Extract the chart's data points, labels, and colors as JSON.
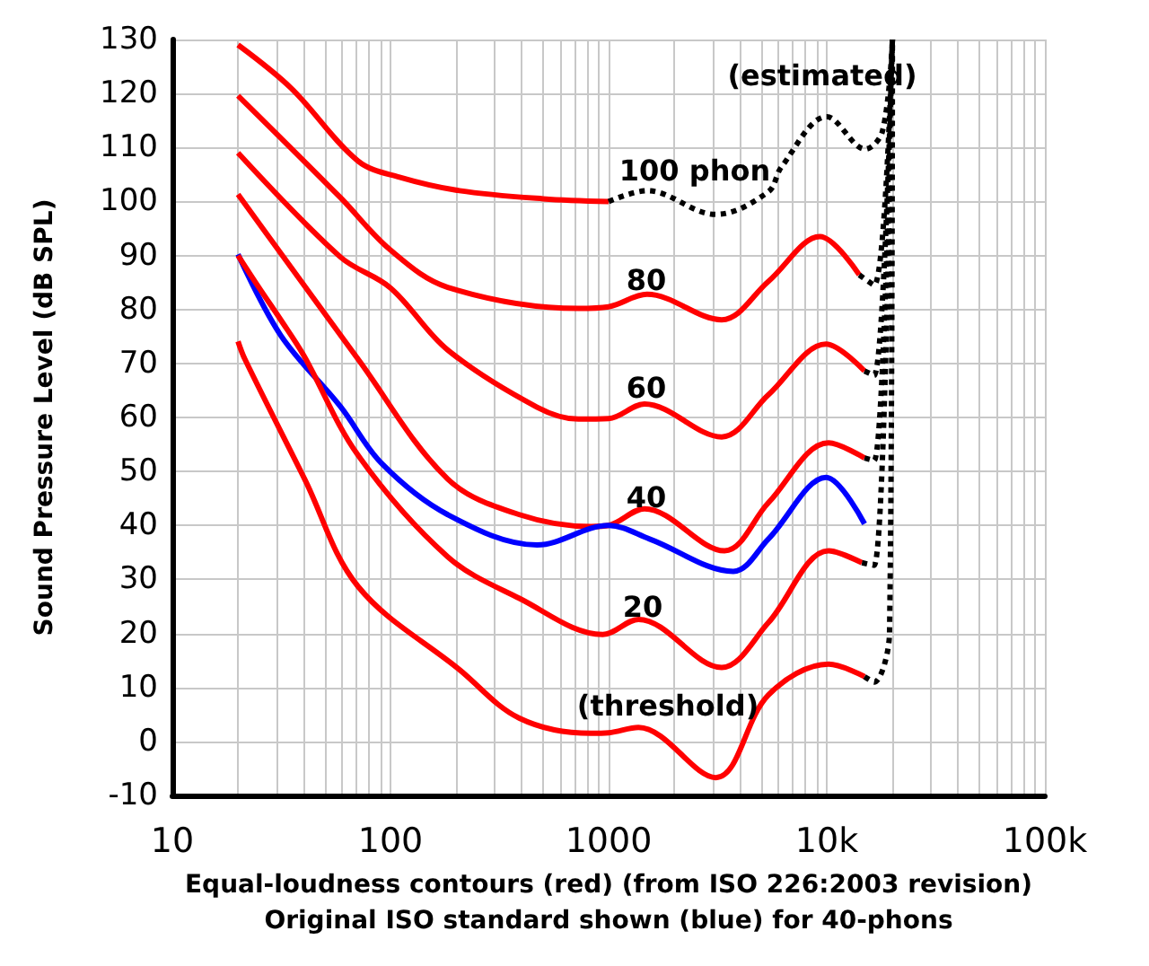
{
  "chart_data": {
    "type": "line",
    "xlabel": "Equal-loudness contours (red) (from ISO 226:2003 revision)\nOriginal ISO standard shown (blue) for 40-phons",
    "ylabel": "Sound Pressure Level (dB SPL)",
    "log": "x",
    "grid": true,
    "marker": "none",
    "xlim": [
      10,
      100000
    ],
    "xticks": [
      10,
      100,
      1000,
      {
        "value": 10000,
        "label": "10k"
      },
      {
        "value": 100000,
        "label": "100k"
      }
    ],
    "ylim": [
      -10,
      130
    ],
    "yticks": [
      -10,
      0,
      10,
      20,
      30,
      40,
      50,
      60,
      70,
      80,
      90,
      100,
      110,
      120,
      130
    ],
    "series": [
      {
        "color": "#ff0000",
        "line_style": "solid",
        "x": [
          20,
          35,
          71,
          110,
          207,
          500,
          1000
        ],
        "values": [
          129,
          121,
          107.5,
          104.5,
          102,
          100.5,
          100
        ]
      },
      {
        "color": "#000000",
        "line_style": "dotted",
        "x": [
          1000,
          1500,
          3100,
          5400,
          6200,
          10000,
          15000,
          18000,
          20000
        ],
        "values": [
          100,
          102,
          97.6,
          101.8,
          106.4,
          115.7,
          109.7,
          113,
          130
        ]
      },
      {
        "color": "#ff0000",
        "line_style": "solid",
        "x": [
          20,
          59,
          100,
          183,
          726,
          1000,
          1500,
          3300,
          5400,
          9300,
          14100
        ],
        "values": [
          119.6,
          100.7,
          91,
          84.1,
          80.2,
          80.5,
          82.8,
          78.1,
          85.2,
          93.5,
          86.4
        ]
      },
      {
        "color": "#000000",
        "line_style": "dotted",
        "x": [
          14100,
          16500,
          20000
        ],
        "values": [
          86.4,
          84.5,
          130
        ]
      },
      {
        "color": "#ff0000",
        "line_style": "solid",
        "x": [
          20,
          59,
          100,
          183,
          470,
          726,
          1000,
          1460,
          3300,
          5400,
          9930,
          14900
        ],
        "values": [
          109,
          89.7,
          84,
          72.5,
          61.9,
          59.7,
          59.8,
          62.5,
          56.4,
          64.2,
          73.6,
          68.6
        ]
      },
      {
        "color": "#000000",
        "line_style": "dotted",
        "x": [
          14900,
          16500,
          20000
        ],
        "values": [
          68.6,
          67.8,
          130
        ]
      },
      {
        "color": "#ff0000",
        "line_style": "solid",
        "x": [
          20,
          71,
          183,
          390,
          830,
          1000,
          1460,
          3400,
          5400,
          10200,
          14900
        ],
        "values": [
          101.3,
          70.8,
          48.6,
          42,
          39.8,
          40,
          43.1,
          35.3,
          44.2,
          55.3,
          52.5
        ]
      },
      {
        "color": "#000000",
        "line_style": "dotted",
        "x": [
          14900,
          16500,
          20000
        ],
        "values": [
          52.5,
          52,
          130
        ]
      },
      {
        "color": "#0000ff",
        "line_style": "solid",
        "x": [
          20,
          31.4,
          59,
          91.5,
          183,
          470,
          1000,
          1540,
          3730,
          5400,
          9930,
          14900
        ],
        "values": [
          90.2,
          75.2,
          62,
          51.4,
          42,
          36.4,
          40,
          37.5,
          31.5,
          37.5,
          48.9,
          40.3
        ]
      },
      {
        "color": "#ff0000",
        "line_style": "solid",
        "x": [
          20,
          25,
          31.5,
          40,
          71,
          183,
          390,
          940,
          1370,
          3300,
          5400,
          10200,
          14500
        ],
        "values": [
          90,
          84,
          78,
          71.5,
          53,
          34.2,
          26.5,
          19.8,
          22.6,
          13.7,
          22,
          35.3,
          33.1
        ]
      },
      {
        "color": "#000000",
        "line_style": "dotted",
        "x": [
          14500,
          16500,
          20000
        ],
        "values": [
          33.1,
          32.6,
          130
        ]
      },
      {
        "color": "#ff0000",
        "line_style": "solid",
        "x": [
          20,
          21.5,
          40.4,
          71,
          207,
          390,
          830,
          1000,
          1370,
          3100,
          5400,
          10200,
          14900
        ],
        "values": [
          74.1,
          70.8,
          48.6,
          28.7,
          13.3,
          4.3,
          1.5,
          1.6,
          2.6,
          -6.7,
          8.6,
          14.3,
          12
        ]
      },
      {
        "color": "#000000",
        "line_style": "dotted",
        "x": [
          14900,
          16500,
          19400,
          20000
        ],
        "values": [
          12,
          11,
          20,
          130
        ]
      }
    ],
    "annotations": [
      "100 phon",
      "80",
      "60",
      "40",
      "20",
      "(threshold)",
      "(estimated)"
    ]
  }
}
